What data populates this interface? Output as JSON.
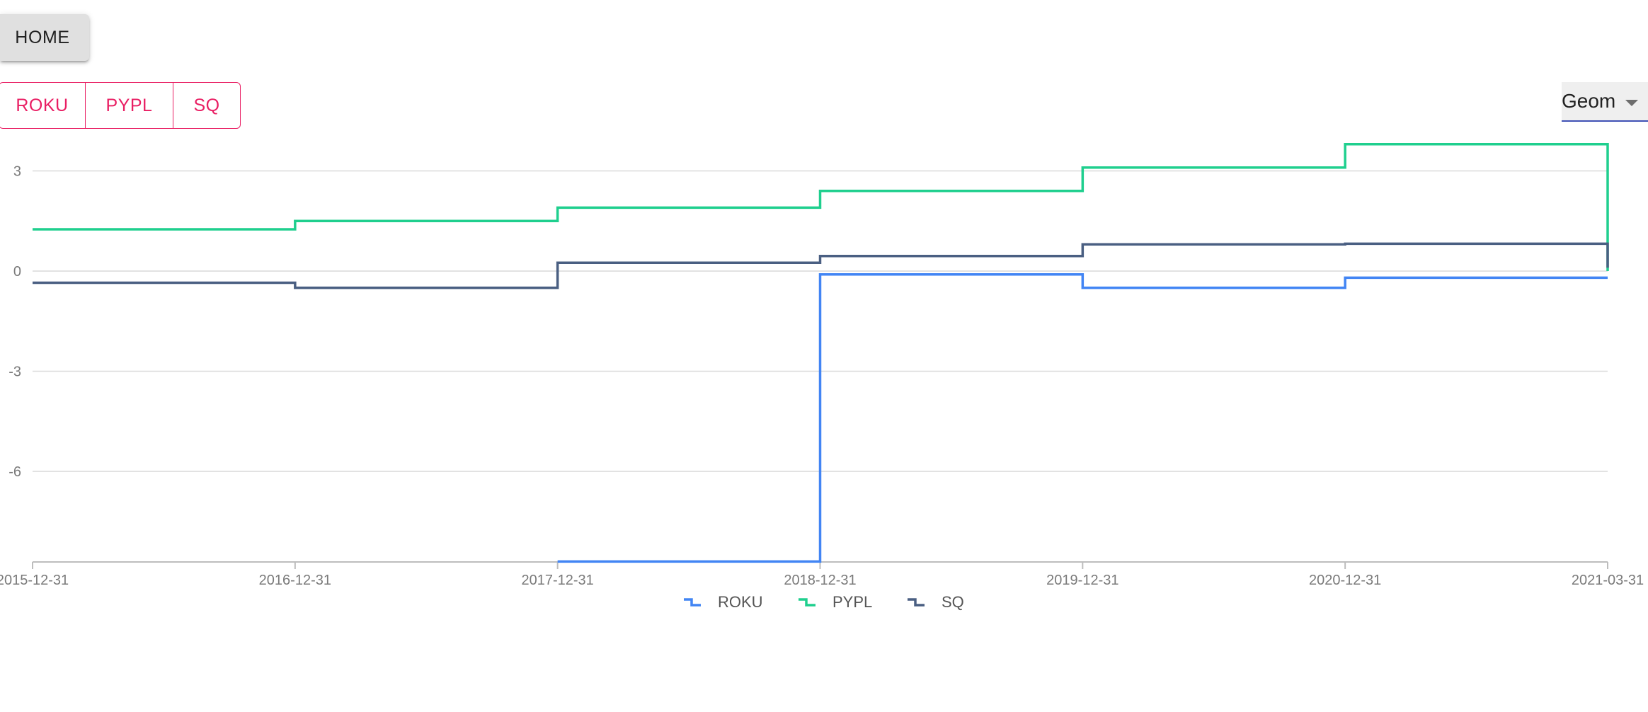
{
  "nav": {
    "home_label": "HOME"
  },
  "tickers": [
    "ROKU",
    "PYPL",
    "SQ"
  ],
  "select": {
    "value": "Geom"
  },
  "colors": {
    "accent": "#e91e63",
    "select_underline": "#3f51b5",
    "grid": "#d9d9d9",
    "axis": "#bdbdbd"
  },
  "chart_data": {
    "type": "line",
    "step": true,
    "x": [
      "2015-12-31",
      "2016-12-31",
      "2017-12-31",
      "2018-12-31",
      "2019-12-31",
      "2020-12-31",
      "2021-03-31"
    ],
    "yticks": [
      3,
      0,
      -3,
      -6
    ],
    "ylim": [
      -8.7,
      3.9
    ],
    "grid": true,
    "legend": "bottom",
    "series": [
      {
        "name": "ROKU",
        "color": "#4285f4",
        "values": [
          null,
          null,
          -8.7,
          -0.1,
          -0.5,
          -0.2,
          -0.2
        ]
      },
      {
        "name": "PYPL",
        "color": "#1fcf8e",
        "values": [
          1.25,
          1.5,
          1.9,
          2.4,
          3.1,
          3.8,
          0
        ]
      },
      {
        "name": "SQ",
        "color": "#4a5f82",
        "values": [
          -0.35,
          -0.5,
          0.25,
          0.45,
          0.8,
          0.82,
          0.1
        ]
      }
    ]
  }
}
